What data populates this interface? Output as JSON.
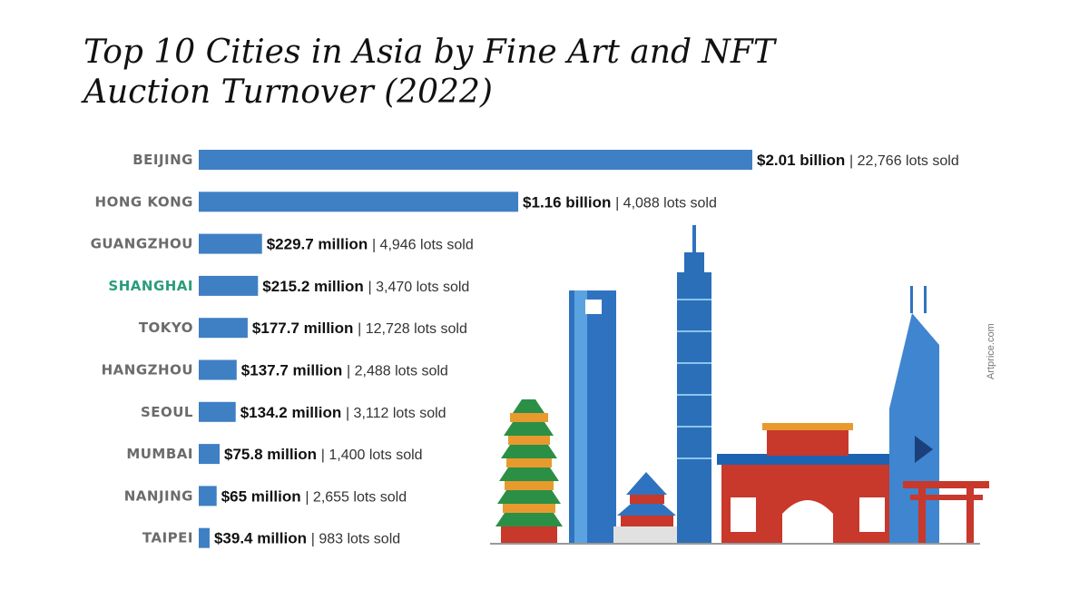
{
  "chart_data": {
    "type": "bar",
    "orientation": "horizontal",
    "title": "Top 10 Cities in Asia by Fine Art and NFT Auction Turnover (2022)",
    "categories": [
      "BEIJING",
      "HONG KONG",
      "GUANGZHOU",
      "SHANGHAI",
      "TOKYO",
      "HANGZHOU",
      "SEOUL",
      "MUMBAI",
      "NANJING",
      "TAIPEI"
    ],
    "values": [
      2010,
      1160,
      229.7,
      215.2,
      177.7,
      137.7,
      134.2,
      75.8,
      65,
      39.4
    ],
    "value_labels": [
      "$2.01 billion",
      "$1.16 billion",
      "$229.7 million",
      "$215.2 million",
      "$177.7 million",
      "$137.7 million",
      "$134.2 million",
      "$75.8 million",
      "$65 million",
      "$39.4 million"
    ],
    "lots_labels": [
      "| 22,766 lots sold",
      "| 4,088 lots sold",
      "| 4,946 lots sold",
      "| 3,470 lots sold",
      "| 12,728 lots sold",
      "| 2,488 lots sold",
      "| 3,112 lots sold",
      "| 1,400 lots sold",
      "| 2,655 lots sold",
      "| 983 lots sold"
    ],
    "xlim": [
      0,
      2010
    ],
    "grid": false,
    "legend": "none",
    "bar_color": "#3f7fc4",
    "label_colors": [
      "#6b6b6b",
      "#6b6b6b",
      "#6b6b6b",
      "#2a9d7a",
      "#6b6b6b",
      "#6b6b6b",
      "#6b6b6b",
      "#6b6b6b",
      "#6b6b6b",
      "#6b6b6b"
    ]
  },
  "credit": "Artprice.com"
}
